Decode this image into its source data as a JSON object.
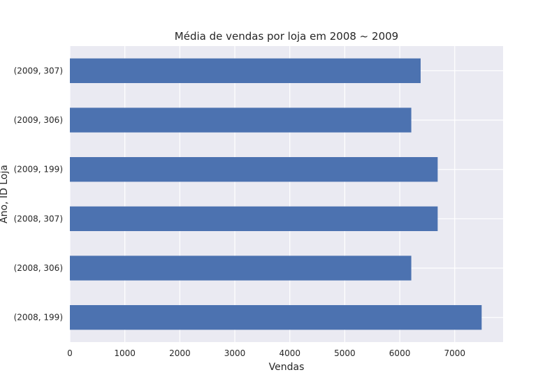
{
  "chart_data": {
    "type": "bar",
    "orientation": "horizontal",
    "title": "Média de vendas por loja em 2008 ~ 2009",
    "xlabel": "Vendas",
    "ylabel": "Ano, ID Loja",
    "categories": [
      "(2008, 199)",
      "(2008, 306)",
      "(2008, 307)",
      "(2009, 199)",
      "(2009, 306)",
      "(2009, 307)"
    ],
    "values": [
      7490,
      6210,
      6690,
      6690,
      6210,
      6380
    ],
    "xlim": [
      0,
      7880
    ],
    "xticks": [
      0,
      1000,
      2000,
      3000,
      4000,
      5000,
      6000,
      7000
    ],
    "grid": true,
    "bar_color": "#4c72b0",
    "background_color": "#eaeaf2"
  }
}
